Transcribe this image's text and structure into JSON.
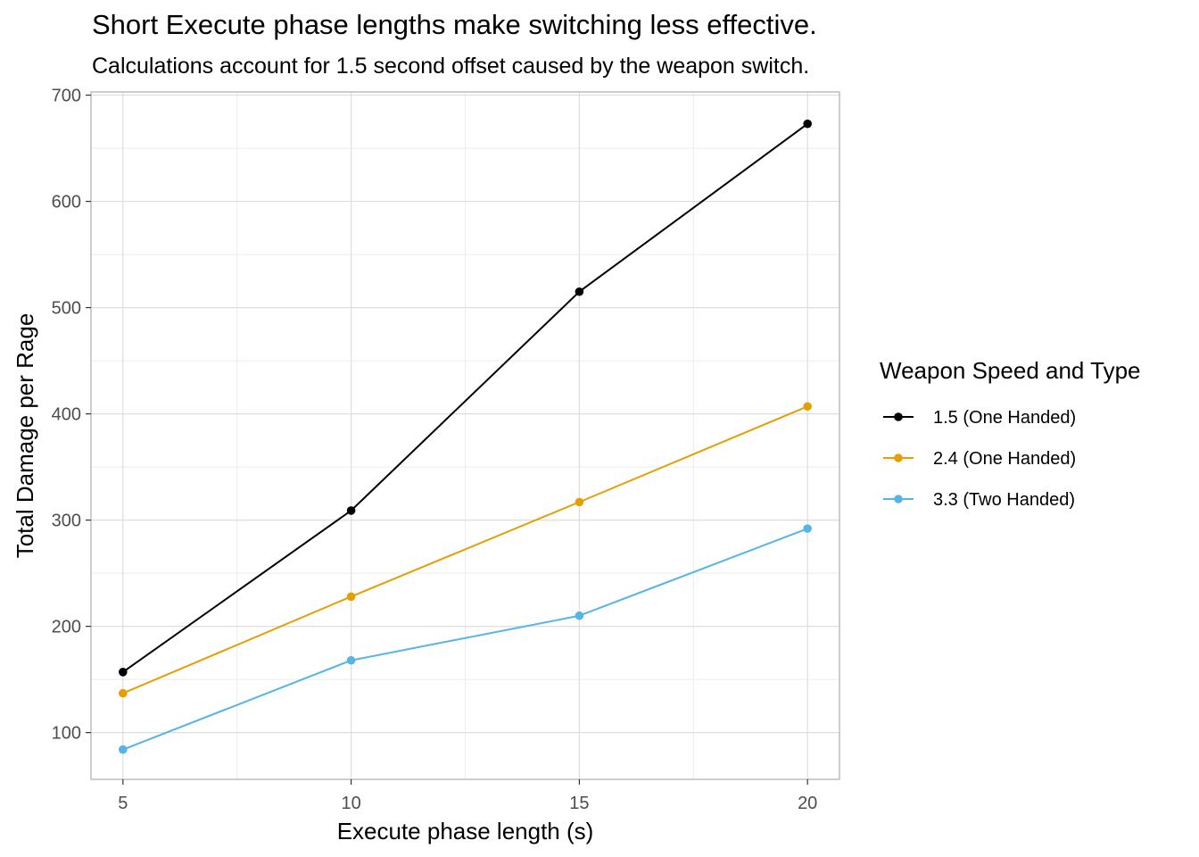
{
  "chart_data": {
    "type": "line",
    "title": "Short Execute phase lengths make switching less effective.",
    "subtitle": "Calculations account for 1.5 second offset caused by the weapon switch.",
    "xlabel": "Execute phase length (s)",
    "ylabel": "Total Damage per Rage",
    "x": [
      5,
      10,
      15,
      20
    ],
    "xticks": [
      "5",
      "10",
      "15",
      "20"
    ],
    "yticks": [
      "100",
      "200",
      "300",
      "400",
      "500",
      "600",
      "700"
    ],
    "xlim": [
      4.3,
      20.7
    ],
    "ylim": [
      56,
      703
    ],
    "grid": true,
    "legend": {
      "title": "Weapon Speed and Type",
      "position": "right"
    },
    "series": [
      {
        "name": "1.5 (One Handed)",
        "color": "#000000",
        "values": [
          157,
          309,
          515,
          673
        ]
      },
      {
        "name": "2.4 (One Handed)",
        "color": "#E69F00",
        "values": [
          137,
          228,
          317,
          407
        ]
      },
      {
        "name": "3.3 (Two Handed)",
        "color": "#56B4E9",
        "values": [
          84,
          168,
          210,
          292
        ]
      }
    ]
  }
}
